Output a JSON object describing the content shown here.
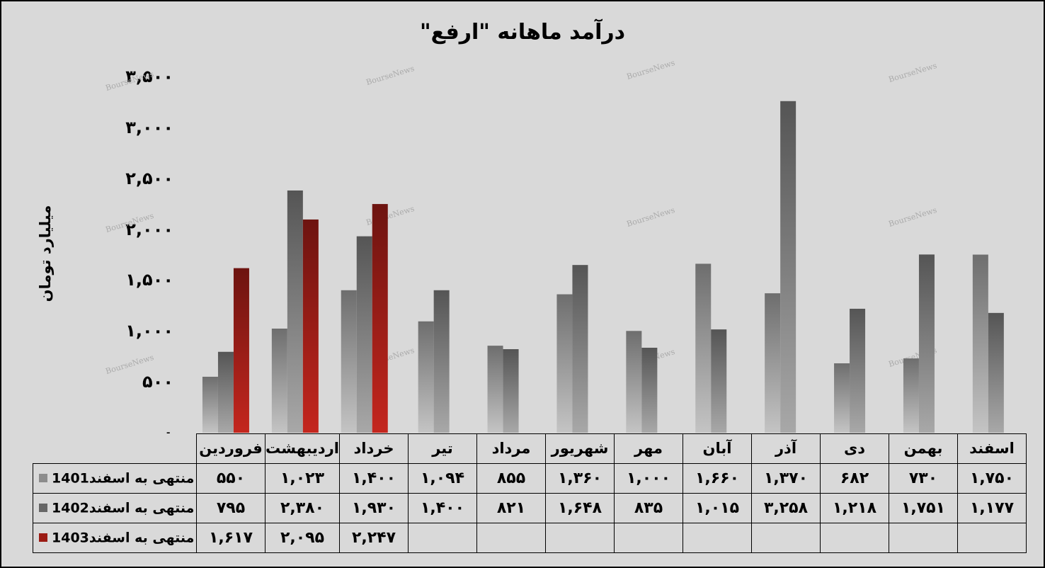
{
  "title": "درآمد ماهانه \"ارفع\"",
  "watermark": "BourseNews",
  "chart_data": {
    "type": "bar",
    "ylabel": "میلیارد تومان",
    "ylim": [
      0,
      3500
    ],
    "yticks": [
      0,
      500,
      1000,
      1500,
      2000,
      2500,
      3000,
      3500
    ],
    "ytick_labels": [
      "۰",
      "۵۰۰",
      "۱,۰۰۰",
      "۱,۵۰۰",
      "۲,۰۰۰",
      "۲,۵۰۰",
      "۳,۰۰۰",
      "۳,۵۰۰"
    ],
    "grid": false,
    "categories": [
      "فروردین",
      "اردیبهشت",
      "خرداد",
      "تیر",
      "مرداد",
      "شهریور",
      "مهر",
      "آبان",
      "آذر",
      "دی",
      "بهمن",
      "اسفند"
    ],
    "series": [
      {
        "name": "منتهی به اسفند1401",
        "color": "#8c8c8c",
        "values": [
          550,
          1023,
          1400,
          1094,
          855,
          1360,
          1000,
          1660,
          1370,
          682,
          730,
          1750
        ],
        "display": [
          "۵۵۰",
          "۱,۰۲۳",
          "۱,۴۰۰",
          "۱,۰۹۴",
          "۸۵۵",
          "۱,۳۶۰",
          "۱,۰۰۰",
          "۱,۶۶۰",
          "۱,۳۷۰",
          "۶۸۲",
          "۷۳۰",
          "۱,۷۵۰"
        ]
      },
      {
        "name": "منتهی به اسفند1402",
        "color": "#666666",
        "values": [
          795,
          2380,
          1930,
          1400,
          821,
          1648,
          835,
          1015,
          3258,
          1218,
          1751,
          1177
        ],
        "display": [
          "۷۹۵",
          "۲,۳۸۰",
          "۱,۹۳۰",
          "۱,۴۰۰",
          "۸۲۱",
          "۱,۶۴۸",
          "۸۳۵",
          "۱,۰۱۵",
          "۳,۲۵۸",
          "۱,۲۱۸",
          "۱,۷۵۱",
          "۱,۱۷۷"
        ]
      },
      {
        "name": "منتهی به اسفند1403",
        "color": "#9b1b14",
        "values": [
          1617,
          2095,
          2247,
          null,
          null,
          null,
          null,
          null,
          null,
          null,
          null,
          null
        ],
        "display": [
          "۱,۶۱۷",
          "۲,۰۹۵",
          "۲,۲۴۷",
          "",
          "",
          "",
          "",
          "",
          "",
          "",
          "",
          ""
        ]
      }
    ]
  }
}
